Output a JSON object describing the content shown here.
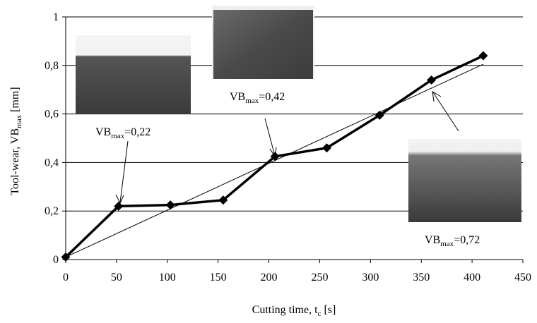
{
  "chart_data": {
    "type": "line",
    "x": [
      0,
      52,
      103,
      155,
      206,
      257,
      309,
      360,
      411
    ],
    "series": [
      {
        "color": "#000000",
        "values": [
          0.01,
          0.22,
          0.225,
          0.245,
          0.425,
          0.46,
          0.595,
          0.74,
          0.84
        ]
      }
    ],
    "trend_line": {
      "x": [
        0,
        411
      ],
      "values": [
        0.01,
        0.805
      ]
    },
    "xlim": [
      0,
      450
    ],
    "xticks": [
      0,
      50,
      100,
      150,
      200,
      250,
      300,
      350,
      400,
      450
    ],
    "ylim": [
      0,
      1
    ],
    "yticks": [
      0,
      {
        "value": 0.2,
        "label": "0,2"
      },
      {
        "value": 0.4,
        "label": "0,4"
      },
      {
        "value": 0.6,
        "label": "0,6"
      },
      {
        "value": 0.8,
        "label": "0,8"
      },
      1
    ],
    "grid": true,
    "x_label": {
      "main": "Cutting time, t",
      "sub": "c",
      "rest": " [s]"
    },
    "y_label": {
      "main": "Tool-wear, VB",
      "sub": "max",
      "rest": " [mm]"
    },
    "annotations": [
      {
        "main": "VB",
        "sub": "max",
        "rest": "=0,22"
      },
      {
        "main": "VB",
        "sub": "max",
        "rest": "=0,42"
      },
      {
        "main": "VB",
        "sub": "max",
        "rest": "=0,72"
      }
    ]
  }
}
